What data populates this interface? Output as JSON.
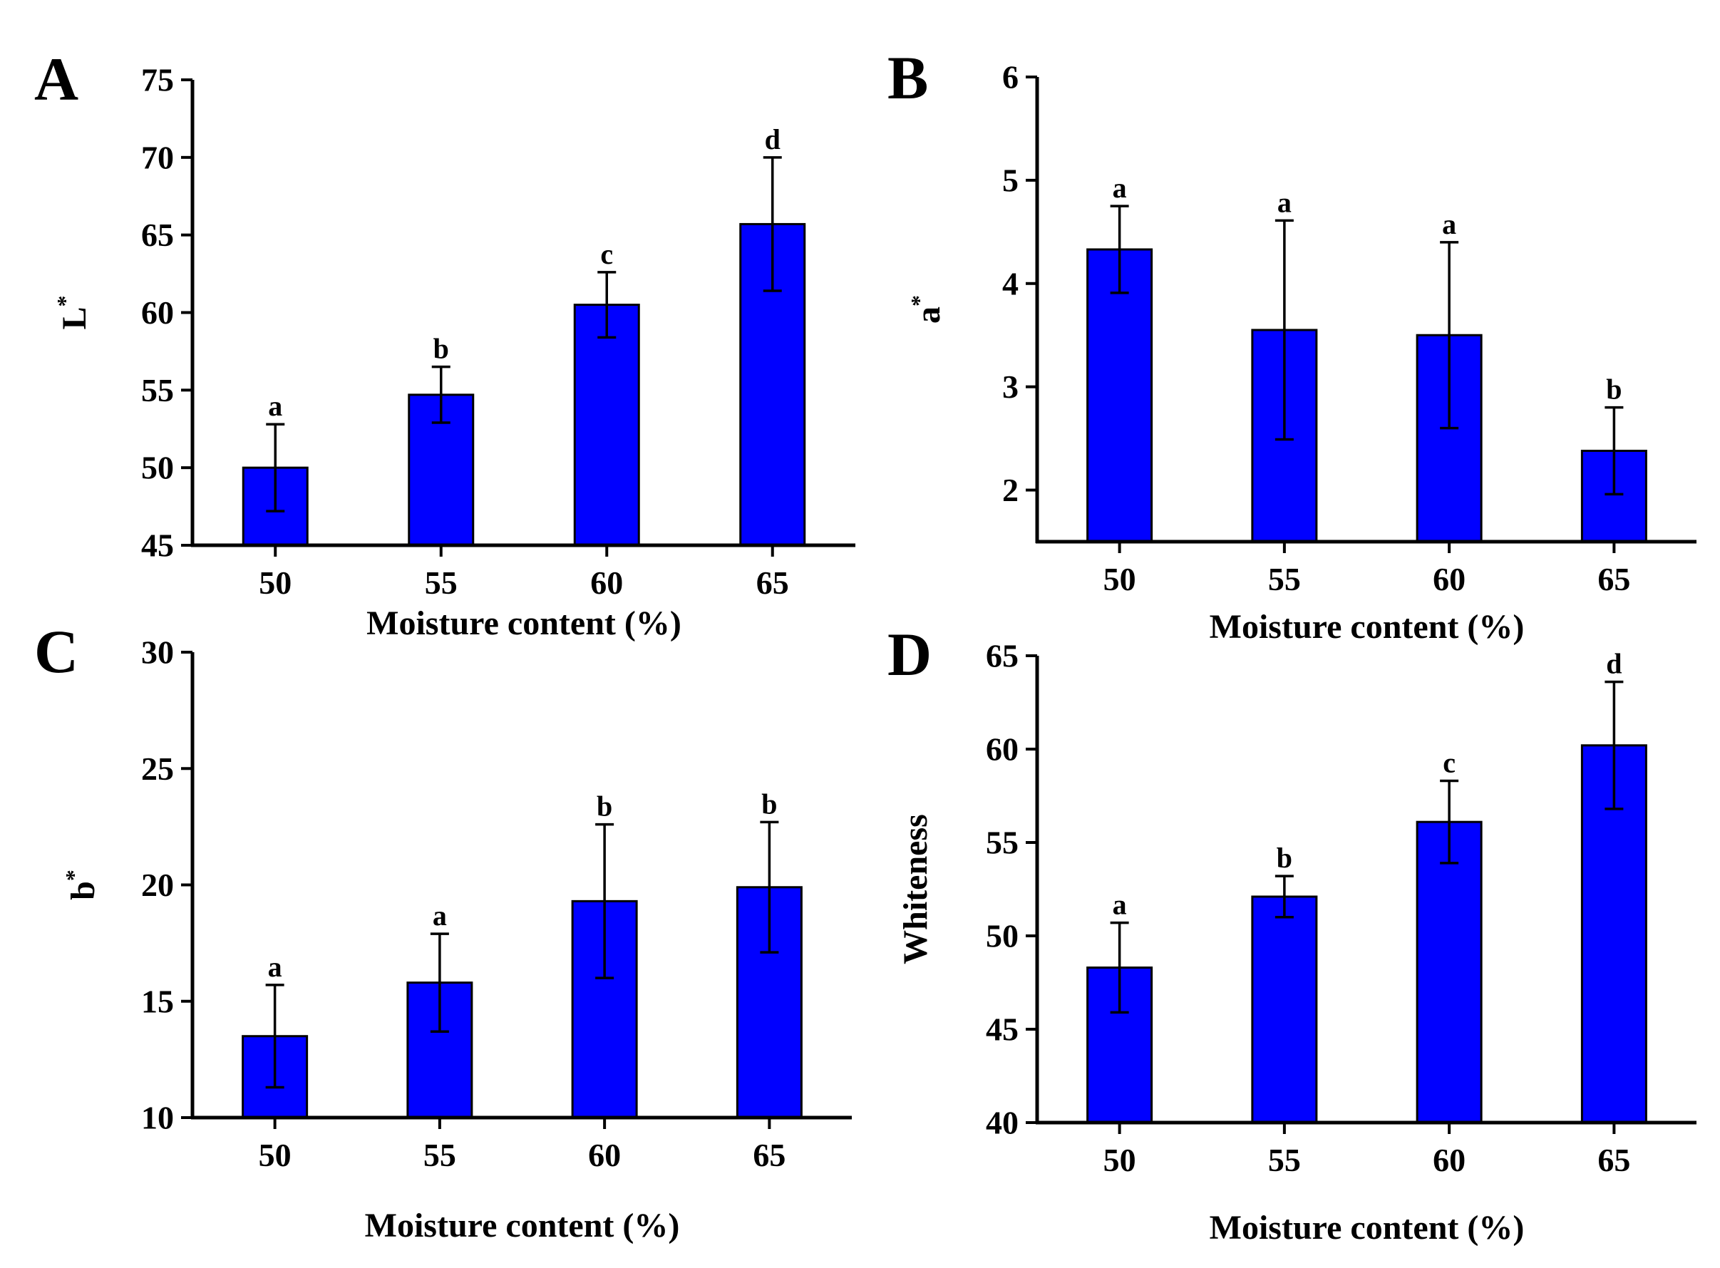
{
  "figure": {
    "panels_count": 4
  },
  "colors": {
    "bar_fill": "#0000FF",
    "bar_stroke": "#000000",
    "axis": "#000000",
    "background": "#FFFFFF"
  },
  "chart_data": [
    {
      "type": "bar",
      "panel_label": "A",
      "title": "",
      "xlabel": "Moisture content (%)",
      "ylabel": "L",
      "ylabel_superscript": "*",
      "categories": [
        "50",
        "55",
        "60",
        "65"
      ],
      "values": [
        50.0,
        54.7,
        60.5,
        65.7
      ],
      "errors": [
        2.8,
        1.8,
        2.1,
        4.3
      ],
      "significance": [
        "a",
        "b",
        "c",
        "d"
      ],
      "ylim": [
        45,
        75
      ],
      "yticks": [
        45,
        50,
        55,
        60,
        65,
        70,
        75
      ]
    },
    {
      "type": "bar",
      "panel_label": "B",
      "title": "",
      "xlabel": "Moisture content (%)",
      "ylabel": "a",
      "ylabel_superscript": "*",
      "categories": [
        "50",
        "55",
        "60",
        "65"
      ],
      "values": [
        4.33,
        3.55,
        3.5,
        2.38
      ],
      "errors": [
        0.42,
        1.06,
        0.9,
        0.42
      ],
      "significance": [
        "a",
        "a",
        "a",
        "b"
      ],
      "ylim": [
        1.5,
        6
      ],
      "yticks": [
        2,
        3,
        4,
        5,
        6
      ]
    },
    {
      "type": "bar",
      "panel_label": "C",
      "title": "",
      "xlabel": "Moisture content (%)",
      "ylabel": "b",
      "ylabel_superscript": "*",
      "categories": [
        "50",
        "55",
        "60",
        "65"
      ],
      "values": [
        13.5,
        15.8,
        19.3,
        19.9
      ],
      "errors": [
        2.2,
        2.1,
        3.3,
        2.8
      ],
      "significance": [
        "a",
        "a",
        "b",
        "b"
      ],
      "ylim": [
        10,
        30
      ],
      "yticks": [
        10,
        15,
        20,
        25,
        30
      ]
    },
    {
      "type": "bar",
      "panel_label": "D",
      "title": "",
      "xlabel": "Moisture content (%)",
      "ylabel": "Whiteness",
      "ylabel_superscript": "",
      "categories": [
        "50",
        "55",
        "60",
        "65"
      ],
      "values": [
        48.3,
        52.1,
        56.1,
        60.2
      ],
      "errors": [
        2.4,
        1.1,
        2.2,
        3.4
      ],
      "significance": [
        "a",
        "b",
        "c",
        "d"
      ],
      "ylim": [
        40,
        65
      ],
      "yticks": [
        40,
        45,
        50,
        55,
        60,
        65
      ]
    }
  ]
}
